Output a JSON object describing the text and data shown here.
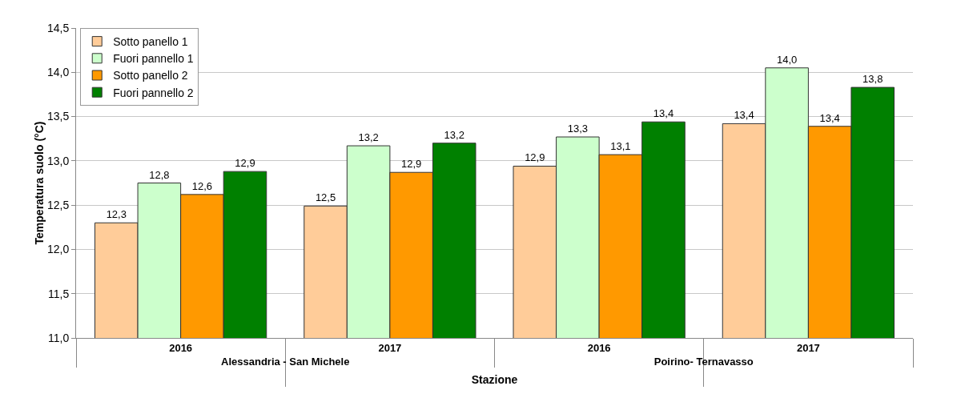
{
  "chart_data": {
    "type": "bar",
    "xlabel": "Stazione",
    "ylabel": "Temperatura suolo (°C)",
    "categories": [
      "2016",
      "2017",
      "2016",
      "2017"
    ],
    "annotations": [
      "Alessandria - San Michele",
      "Poirino- Ternavasso"
    ],
    "series": [
      {
        "name": "Sotto panello 1",
        "color": "#ffcc99",
        "values": [
          12.3,
          12.49,
          12.94,
          13.42
        ],
        "value_labels": [
          "12,3",
          "12,5",
          "12,9",
          "13,4"
        ]
      },
      {
        "name": "Fuori pannello 1",
        "color": "#ccffcc",
        "values": [
          12.75,
          13.17,
          13.27,
          14.05
        ],
        "value_labels": [
          "12,8",
          "13,2",
          "13,3",
          "14,0"
        ]
      },
      {
        "name": "Sotto panello 2",
        "color": "#ff9900",
        "values": [
          12.62,
          12.87,
          13.07,
          13.39
        ],
        "value_labels": [
          "12,6",
          "12,9",
          "13,1",
          "13,4"
        ]
      },
      {
        "name": "Fuori pannello 2",
        "color": "#008000",
        "values": [
          12.88,
          13.2,
          13.44,
          13.83
        ],
        "value_labels": [
          "12,9",
          "13,2",
          "13,4",
          "13,8"
        ]
      }
    ],
    "ylim": [
      11,
      14.5
    ],
    "yticks": [
      {
        "value": 11,
        "label": "11,0"
      },
      {
        "value": 11.5,
        "label": "11,5"
      },
      {
        "value": 12,
        "label": "12,0"
      },
      {
        "value": 12.5,
        "label": "12,5"
      },
      {
        "value": 13,
        "label": "13,0"
      },
      {
        "value": 13.5,
        "label": "13,5"
      },
      {
        "value": 14,
        "label": "14,0"
      },
      {
        "value": 14.5,
        "label": "14,5"
      }
    ],
    "grid": "y",
    "legend": "top left"
  }
}
